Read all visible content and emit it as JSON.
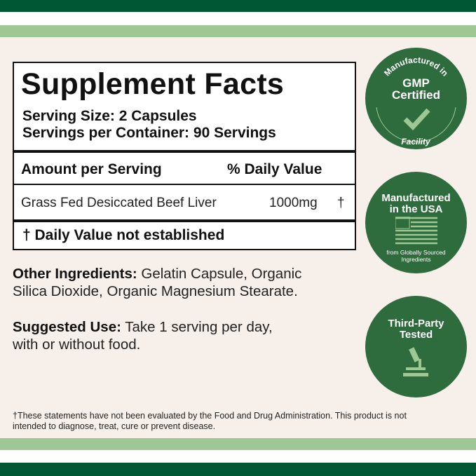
{
  "colors": {
    "dark_green": "#005733",
    "light_green": "#9ec893",
    "background": "#f7efea",
    "badge_green": "#2e6b3d",
    "badge_accent": "#9ec893"
  },
  "facts": {
    "title": "Supplement Facts",
    "serving_size": "Serving Size: 2 Capsules",
    "servings_per_container": "Servings per Container: 90 Servings",
    "amount_header": "Amount per Serving",
    "dv_header": "% Daily Value",
    "ingredient": "Grass Fed Desiccated Beef Liver",
    "amount": "1000mg",
    "dv": "†",
    "footnote": "† Daily Value not established"
  },
  "other_ingredients": {
    "label": "Other Ingredients:",
    "line1": " Gelatin Capsule, Organic",
    "line2": "Silica Dioxide, Organic Magnesium Stearate."
  },
  "suggested_use": {
    "label": "Suggested Use:",
    "line1": " Take 1 serving per day,",
    "line2": "with or without food."
  },
  "badges": [
    {
      "top_arc": "Manufactured in",
      "title1": "GMP",
      "title2": "Certified",
      "bottom_arc": "Facility",
      "icon": "checkmark-icon"
    },
    {
      "title1": "Manufactured",
      "title2": "in the USA",
      "sub1": "from Globally Sourced",
      "sub2": "Ingredients",
      "icon": "us-flag-icon"
    },
    {
      "title1": "Third-Party",
      "title2": "Tested",
      "icon": "microscope-icon"
    }
  ],
  "disclaimer": {
    "line1": "†These statements have not been evaluated by the Food and Drug Administration. This product is not",
    "line2": "intended to diagnose, treat, cure or prevent disease."
  }
}
